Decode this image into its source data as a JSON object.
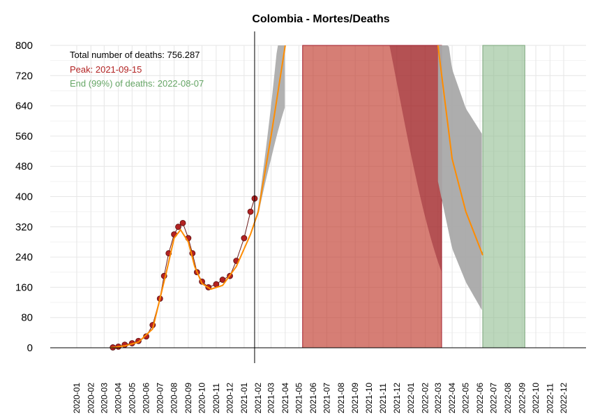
{
  "chart_data": {
    "type": "line",
    "title": "Colombia - Mortes/Deaths",
    "xlabel": "",
    "ylabel": "",
    "ylim": [
      0,
      800
    ],
    "y_ticks": [
      0,
      80,
      160,
      240,
      320,
      400,
      480,
      560,
      640,
      720,
      800
    ],
    "x_tick_labels": [
      "2020-01",
      "2020-02",
      "2020-03",
      "2020-04",
      "2020-05",
      "2020-06",
      "2020-07",
      "2020-08",
      "2020-09",
      "2020-10",
      "2020-11",
      "2020-12",
      "2021-01",
      "2021-02",
      "2021-03",
      "2021-04",
      "2021-05",
      "2021-06",
      "2021-07",
      "2021-08",
      "2021-09",
      "2021-10",
      "2021-11",
      "2021-12",
      "2022-01",
      "2022-02",
      "2022-03",
      "2022-04",
      "2022-05",
      "2022-06",
      "2022-07",
      "2022-08",
      "2022-09",
      "2022-10",
      "2022-11",
      "2022-12"
    ],
    "grid": true,
    "today_line_date": "2021-01-24",
    "annotations": {
      "total": "Total number of deaths: 756.287",
      "peak": "Peak: 2021-09-15",
      "end": "End (99%) of deaths: 2022-08-07"
    },
    "colors": {
      "points": "#b22222",
      "fit_line": "#ff8c00",
      "band": "#a9a9a9",
      "peak_region": "#c0392b",
      "end_region": "#8fbc8f",
      "peak_text": "#b22222",
      "end_text": "#66a666"
    },
    "peak_region": [
      "2021-05-09",
      "2022-03-09"
    ],
    "end_region": [
      "2022-06-07",
      "2022-09-07"
    ],
    "observed_points": [
      [
        "2020-03-20",
        1
      ],
      [
        "2020-04-01",
        3
      ],
      [
        "2020-04-15",
        8
      ],
      [
        "2020-05-01",
        12
      ],
      [
        "2020-05-15",
        18
      ],
      [
        "2020-06-01",
        30
      ],
      [
        "2020-06-15",
        60
      ],
      [
        "2020-07-01",
        130
      ],
      [
        "2020-07-10",
        190
      ],
      [
        "2020-07-20",
        250
      ],
      [
        "2020-08-01",
        300
      ],
      [
        "2020-08-10",
        320
      ],
      [
        "2020-08-20",
        330
      ],
      [
        "2020-09-01",
        290
      ],
      [
        "2020-09-10",
        250
      ],
      [
        "2020-09-20",
        200
      ],
      [
        "2020-10-01",
        175
      ],
      [
        "2020-10-15",
        160
      ],
      [
        "2020-11-01",
        168
      ],
      [
        "2020-11-15",
        180
      ],
      [
        "2020-12-01",
        190
      ],
      [
        "2020-12-15",
        230
      ],
      [
        "2021-01-01",
        290
      ],
      [
        "2021-01-15",
        360
      ],
      [
        "2021-01-24",
        395
      ]
    ],
    "fitted_curve": [
      [
        "2020-03-15",
        0
      ],
      [
        "2020-04-15",
        5
      ],
      [
        "2020-05-15",
        15
      ],
      [
        "2020-06-15",
        50
      ],
      [
        "2020-07-15",
        200
      ],
      [
        "2020-08-01",
        290
      ],
      [
        "2020-08-15",
        312
      ],
      [
        "2020-09-01",
        280
      ],
      [
        "2020-09-15",
        215
      ],
      [
        "2020-10-01",
        170
      ],
      [
        "2020-10-20",
        155
      ],
      [
        "2020-11-15",
        165
      ],
      [
        "2020-12-15",
        215
      ],
      [
        "2021-01-15",
        300
      ],
      [
        "2021-02-01",
        360
      ],
      [
        "2021-03-01",
        560
      ],
      [
        "2021-04-01",
        800
      ]
    ],
    "fitted_curve_descent": [
      [
        "2022-03-01",
        800
      ],
      [
        "2022-04-01",
        500
      ],
      [
        "2022-05-01",
        360
      ],
      [
        "2022-06-07",
        245
      ]
    ]
  }
}
